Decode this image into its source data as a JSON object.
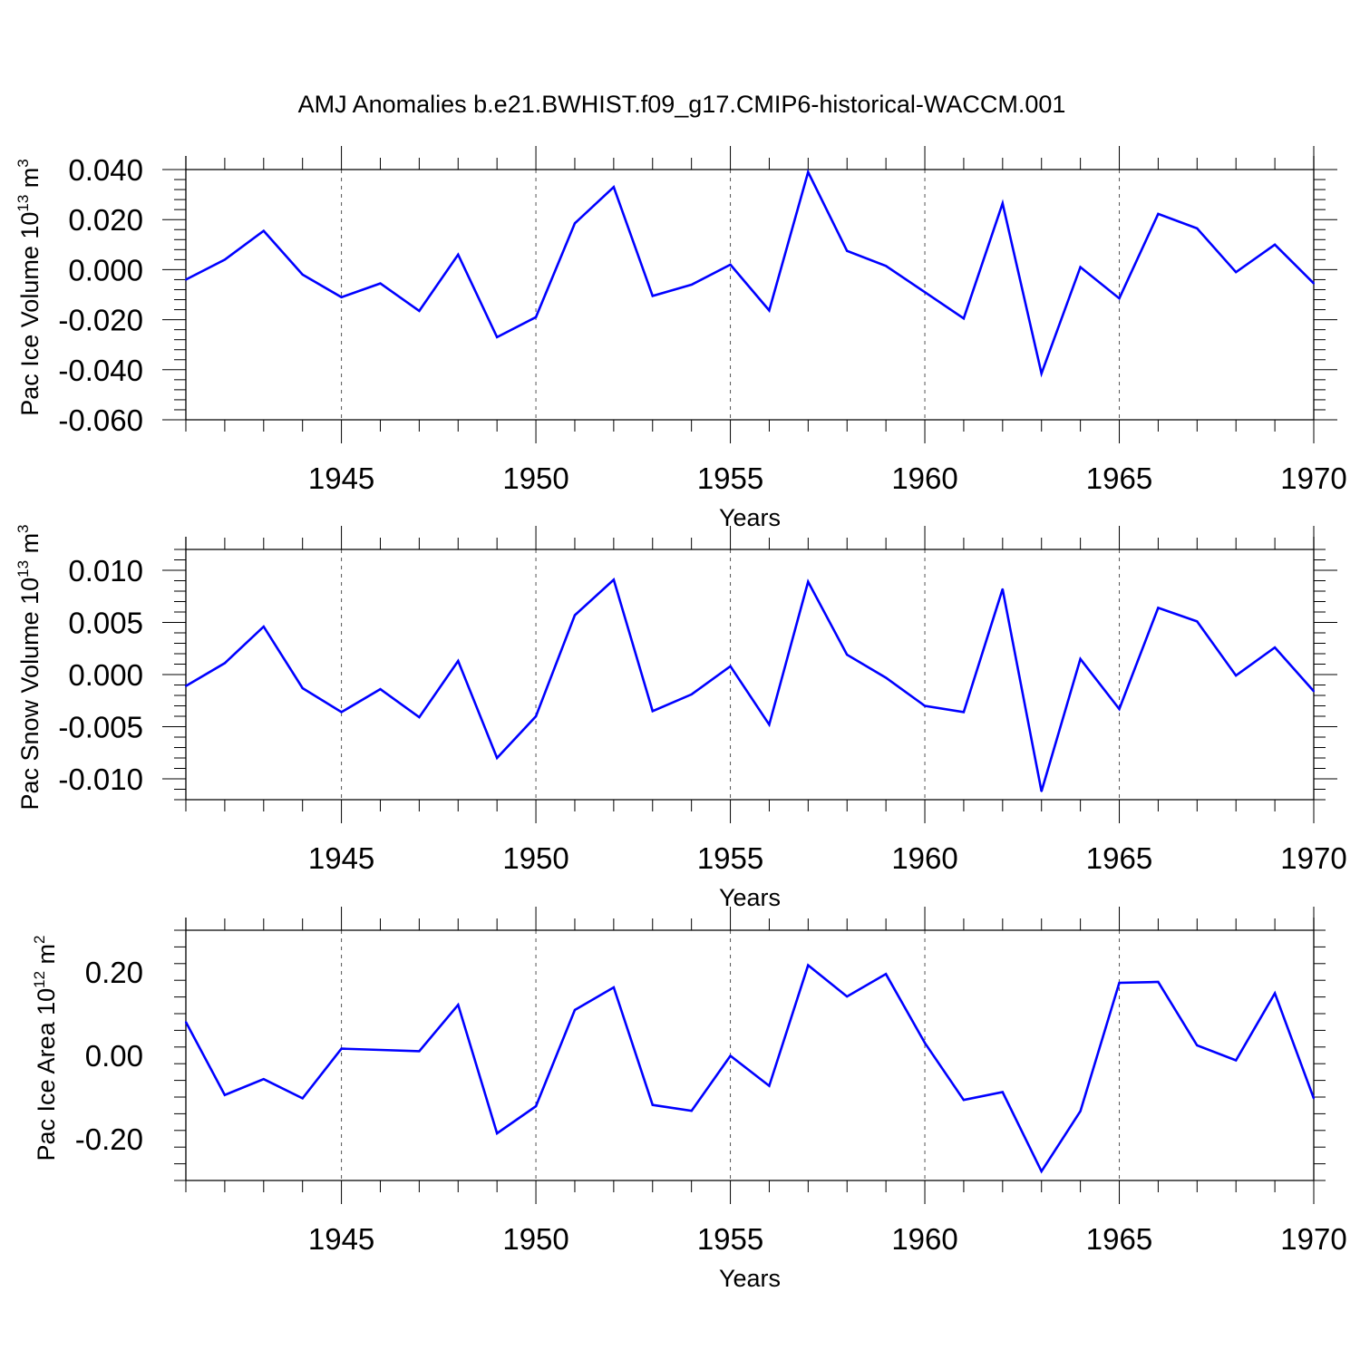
{
  "figure_title": "AMJ Anomalies b.e21.BWHIST.f09_g17.CMIP6-historical-WACCM.001",
  "colors": {
    "series": "#0000ff",
    "axis": "#000000",
    "grid": "#555555"
  },
  "chart_data": [
    {
      "type": "line",
      "title": "AMJ Anomalies b.e21.BWHIST.f09_g17.CMIP6-historical-WACCM.001",
      "xlabel": "Years",
      "ylabel_main": "Pac Ice Volume 10",
      "ylabel_exp": "13",
      "ylabel_unit": " m",
      "ylabel_unit_exp": "3",
      "xlim": [
        1941,
        1970
      ],
      "ylim": [
        -0.06,
        0.04
      ],
      "x_ticks": [
        1945,
        1950,
        1955,
        1960,
        1965,
        1970
      ],
      "x_tick_labels": [
        "1945",
        "1950",
        "1955",
        "1960",
        "1965",
        "1970"
      ],
      "y_ticks": [
        -0.06,
        -0.04,
        -0.02,
        0.0,
        0.02,
        0.04
      ],
      "y_tick_labels": [
        "-0.060",
        "-0.040",
        "-0.020",
        "0.000",
        "0.020",
        "0.040"
      ],
      "vgrid": [
        1945,
        1950,
        1955,
        1960,
        1965
      ],
      "x": [
        1941,
        1942,
        1943,
        1944,
        1945,
        1946,
        1947,
        1948,
        1949,
        1950,
        1951,
        1952,
        1953,
        1954,
        1955,
        1956,
        1957,
        1958,
        1959,
        1960,
        1961,
        1962,
        1963,
        1964,
        1965,
        1966,
        1967,
        1968,
        1969,
        1970
      ],
      "values": [
        -0.004,
        0.004,
        0.0155,
        -0.002,
        -0.011,
        -0.0055,
        -0.0165,
        0.006,
        -0.027,
        -0.019,
        0.0185,
        0.033,
        -0.0105,
        -0.006,
        0.002,
        -0.0163,
        0.039,
        0.0075,
        0.0015,
        -0.009,
        -0.0195,
        0.0265,
        -0.0415,
        0.001,
        -0.0115,
        0.0223,
        0.0165,
        -0.001,
        0.01,
        -0.0055
      ]
    },
    {
      "type": "line",
      "xlabel": "Years",
      "ylabel_main": "Pac Snow Volume 10",
      "ylabel_exp": "13",
      "ylabel_unit": " m",
      "ylabel_unit_exp": "3",
      "xlim": [
        1941,
        1970
      ],
      "ylim": [
        -0.012,
        0.012
      ],
      "x_ticks": [
        1945,
        1950,
        1955,
        1960,
        1965,
        1970
      ],
      "x_tick_labels": [
        "1945",
        "1950",
        "1955",
        "1960",
        "1965",
        "1970"
      ],
      "y_ticks": [
        -0.01,
        -0.005,
        0.0,
        0.005,
        0.01
      ],
      "y_tick_labels": [
        "-0.010",
        "-0.005",
        "0.000",
        "0.005",
        "0.010"
      ],
      "vgrid": [
        1945,
        1950,
        1955,
        1960,
        1965
      ],
      "x": [
        1941,
        1942,
        1943,
        1944,
        1945,
        1946,
        1947,
        1948,
        1949,
        1950,
        1951,
        1952,
        1953,
        1954,
        1955,
        1956,
        1957,
        1958,
        1959,
        1960,
        1961,
        1962,
        1963,
        1964,
        1965,
        1966,
        1967,
        1968,
        1969,
        1970
      ],
      "values": [
        -0.0011,
        0.0011,
        0.0046,
        -0.0013,
        -0.0036,
        -0.0014,
        -0.0041,
        0.0013,
        -0.008,
        -0.004,
        0.0057,
        0.0091,
        -0.0035,
        -0.0019,
        0.0008,
        -0.0048,
        0.0089,
        0.0019,
        -0.0003,
        -0.003,
        -0.0036,
        0.0082,
        -0.0112,
        0.0015,
        -0.0033,
        0.0064,
        0.0051,
        -0.0001,
        0.0026,
        -0.0016
      ]
    },
    {
      "type": "line",
      "xlabel": "Years",
      "ylabel_main": "Pac Ice Area 10",
      "ylabel_exp": "12",
      "ylabel_unit": " m",
      "ylabel_unit_exp": "2",
      "xlim": [
        1941,
        1970
      ],
      "ylim": [
        -0.3,
        0.3
      ],
      "x_ticks": [
        1945,
        1950,
        1955,
        1960,
        1965,
        1970
      ],
      "x_tick_labels": [
        "1945",
        "1950",
        "1955",
        "1960",
        "1965",
        "1970"
      ],
      "y_ticks": [
        -0.2,
        0.0,
        0.2
      ],
      "y_tick_labels": [
        "-0.20",
        "0.00",
        "0.20"
      ],
      "vgrid": [
        1945,
        1950,
        1955,
        1960,
        1965
      ],
      "x": [
        1941,
        1942,
        1943,
        1944,
        1945,
        1946,
        1947,
        1948,
        1949,
        1950,
        1951,
        1952,
        1953,
        1954,
        1955,
        1956,
        1957,
        1958,
        1959,
        1960,
        1961,
        1962,
        1963,
        1964,
        1965,
        1966,
        1967,
        1968,
        1969,
        1970
      ],
      "values": [
        0.08,
        -0.095,
        -0.057,
        -0.103,
        0.016,
        0.013,
        0.01,
        0.121,
        -0.187,
        -0.122,
        0.109,
        0.163,
        -0.119,
        -0.133,
        -0.001,
        -0.073,
        0.216,
        0.141,
        0.195,
        0.03,
        -0.107,
        -0.088,
        -0.278,
        -0.134,
        0.174,
        0.176,
        0.024,
        -0.012,
        0.149,
        -0.103
      ]
    }
  ]
}
